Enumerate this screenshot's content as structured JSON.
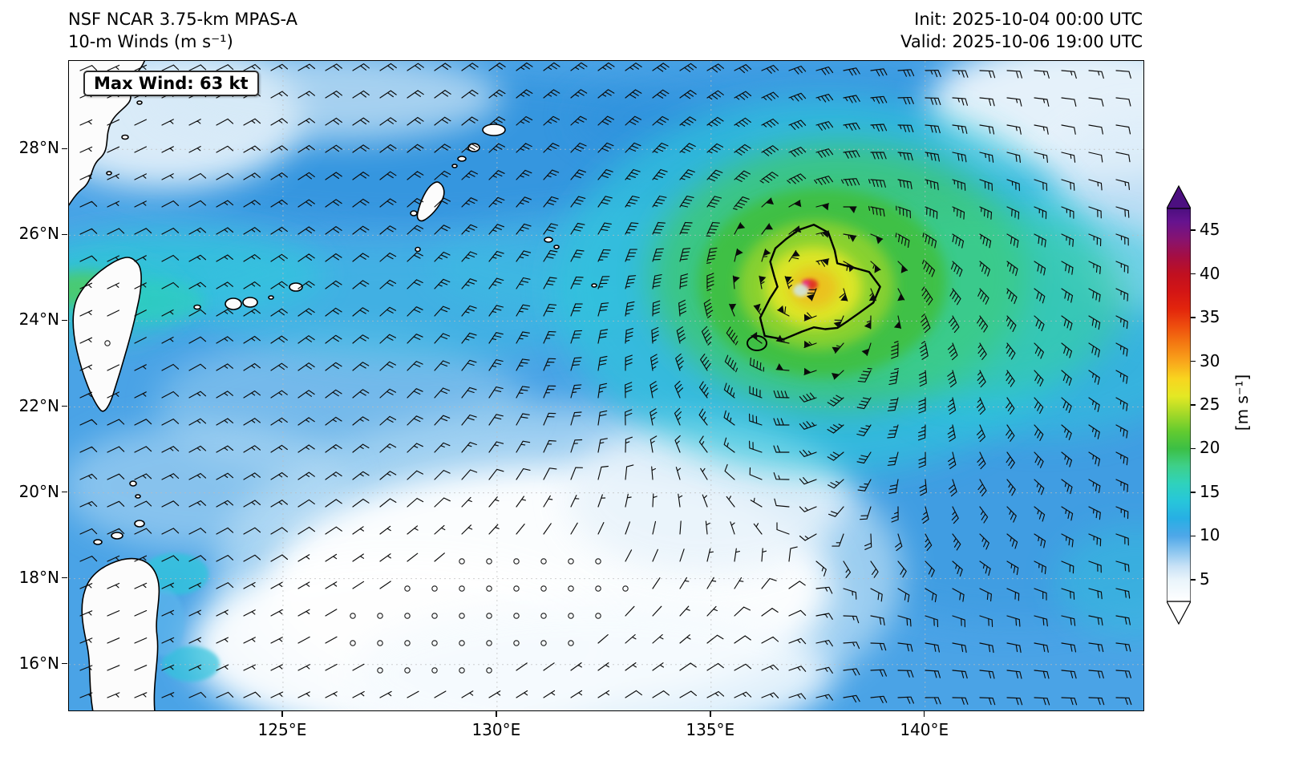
{
  "header": {
    "title_line1": "NSF NCAR 3.75-km MPAS-A",
    "title_line2": "10-m Winds (m s⁻¹)",
    "init_label": "Init: 2025-10-04 00:00 UTC",
    "valid_label": "Valid: 2025-10-06 19:00 UTC"
  },
  "map": {
    "max_wind_label": "Max Wind: 63 kt"
  },
  "chart_data": {
    "type": "heatmap",
    "title": "NSF NCAR 3.75-km MPAS-A 10-m Winds (m s⁻¹)",
    "init_time": "2025-10-04 00:00 UTC",
    "valid_time": "2025-10-06 19:00 UTC",
    "max_wind": {
      "value": 63,
      "units": "kt"
    },
    "field": "10-m wind speed shaded in m/s with wind barbs; tropical cyclone with closed black wind contour; calm circles where wind is light",
    "x_axis": {
      "range_deg_e": [
        120.0,
        145.1
      ],
      "tick_values": [
        125,
        130,
        135,
        140
      ],
      "tick_labels": [
        "125°E",
        "130°E",
        "135°E",
        "140°E"
      ]
    },
    "y_axis": {
      "range_deg_n": [
        14.93,
        30.06
      ],
      "tick_values": [
        16,
        18,
        20,
        22,
        24,
        26,
        28
      ],
      "tick_labels": [
        "16°N",
        "18°N",
        "20°N",
        "22°N",
        "24°N",
        "26°N",
        "28°N"
      ]
    },
    "storm_center": {
      "lon_e": 137.4,
      "lat_n": 24.8
    },
    "colorbar": {
      "label": "[m s⁻¹]",
      "tick_values": [
        5,
        10,
        15,
        20,
        25,
        30,
        35,
        40,
        45
      ],
      "range": [
        2.5,
        47.5
      ],
      "extend": "both",
      "stops": [
        {
          "v": 2.5,
          "c": "#ffffff"
        },
        {
          "v": 5,
          "c": "#e9f4fb"
        },
        {
          "v": 6.5,
          "c": "#c9e2f6"
        },
        {
          "v": 8,
          "c": "#93c9f0"
        },
        {
          "v": 10,
          "c": "#4ea7e8"
        },
        {
          "v": 12,
          "c": "#27afe4"
        },
        {
          "v": 14,
          "c": "#27c6da"
        },
        {
          "v": 16,
          "c": "#2fd2bc"
        },
        {
          "v": 18,
          "c": "#3ed08a"
        },
        {
          "v": 20,
          "c": "#3cbf45"
        },
        {
          "v": 22,
          "c": "#63cb2f"
        },
        {
          "v": 24,
          "c": "#a5d928"
        },
        {
          "v": 26,
          "c": "#e4e824"
        },
        {
          "v": 28,
          "c": "#f8d51f"
        },
        {
          "v": 30,
          "c": "#f9a51b"
        },
        {
          "v": 32,
          "c": "#f47a12"
        },
        {
          "v": 34,
          "c": "#ee4e0e"
        },
        {
          "v": 36,
          "c": "#e2250c"
        },
        {
          "v": 38,
          "c": "#d31515"
        },
        {
          "v": 40,
          "c": "#c01020"
        },
        {
          "v": 42,
          "c": "#a50e43"
        },
        {
          "v": 44,
          "c": "#871370"
        },
        {
          "v": 46,
          "c": "#66138f"
        },
        {
          "v": 47.5,
          "c": "#4c0f80"
        }
      ]
    }
  }
}
